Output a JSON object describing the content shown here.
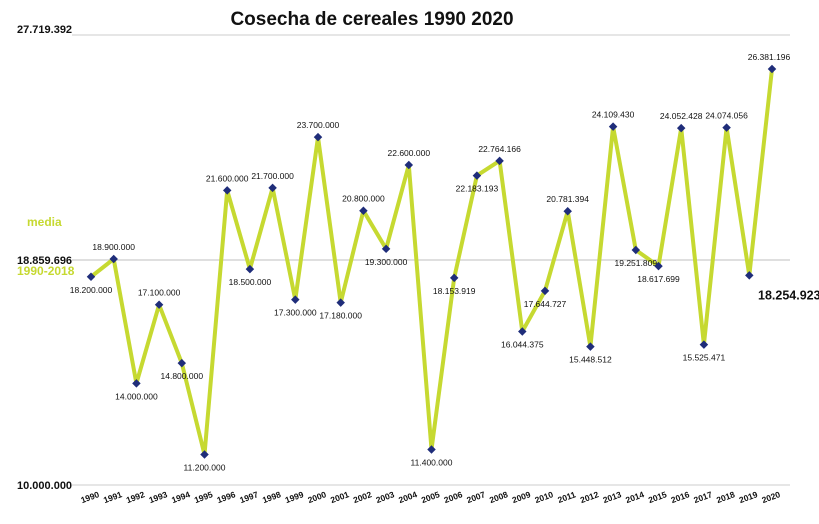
{
  "chart_data": {
    "type": "line",
    "title": "Cosecha de cereales 1990 2020",
    "x": [
      "1990",
      "1991",
      "1992",
      "1993",
      "1994",
      "1995",
      "1996",
      "1997",
      "1998",
      "1999",
      "2000",
      "2001",
      "2002",
      "2003",
      "2004",
      "2005",
      "2006",
      "2007",
      "2008",
      "2009",
      "2010",
      "2011",
      "2012",
      "2013",
      "2014",
      "2015",
      "2016",
      "2017",
      "2018",
      "2019",
      "2020"
    ],
    "values": [
      18200000,
      18900000,
      14000000,
      17100000,
      14800000,
      11200000,
      21600000,
      18500000,
      21700000,
      17300000,
      23700000,
      17180000,
      20800000,
      19300000,
      22600000,
      11400000,
      18153919,
      22183193,
      22764166,
      16044375,
      17644727,
      20781394,
      15448512,
      24109430,
      19251809,
      18617699,
      24052428,
      15525471,
      24074056,
      18254923,
      26381196
    ],
    "data_labels": [
      "18.200.000",
      "18.900.000",
      "14.000.000",
      "17.100.000",
      "14.800.000",
      "11.200.000",
      "21.600.000",
      "18.500.000",
      "21.700.000",
      "17.300.000",
      "23.700.000",
      "17.180.000",
      "20.800.000",
      "19.300.000",
      "22.600.000",
      "11.400.000",
      "18.153.919",
      "22.183.193",
      "22.764.166",
      "16.044.375",
      "17.644.727",
      "20.781.394",
      "15.448.512",
      "24.109.430",
      "19.251.809",
      "18.617.699",
      "24.052.428",
      "15.525.471",
      "24.074.056",
      "18.254.923",
      "26.381.196"
    ],
    "ylim": [
      10000000,
      27719392
    ],
    "reference_lines": {
      "max": {
        "value": 27719392,
        "label": "27.719.392"
      },
      "mean": {
        "value": 18859696,
        "label": "18.859.696",
        "caption_top": "media",
        "caption_bottom": "1990-2018"
      },
      "min": {
        "value": 10000000,
        "label": "10.000.000"
      }
    },
    "grid": "horizontal reference lines only",
    "legend": "none",
    "colors": {
      "line": "#c6d931",
      "marker": "#1f2d7a",
      "refline": "#cccccc",
      "media": "#c6d931"
    }
  }
}
